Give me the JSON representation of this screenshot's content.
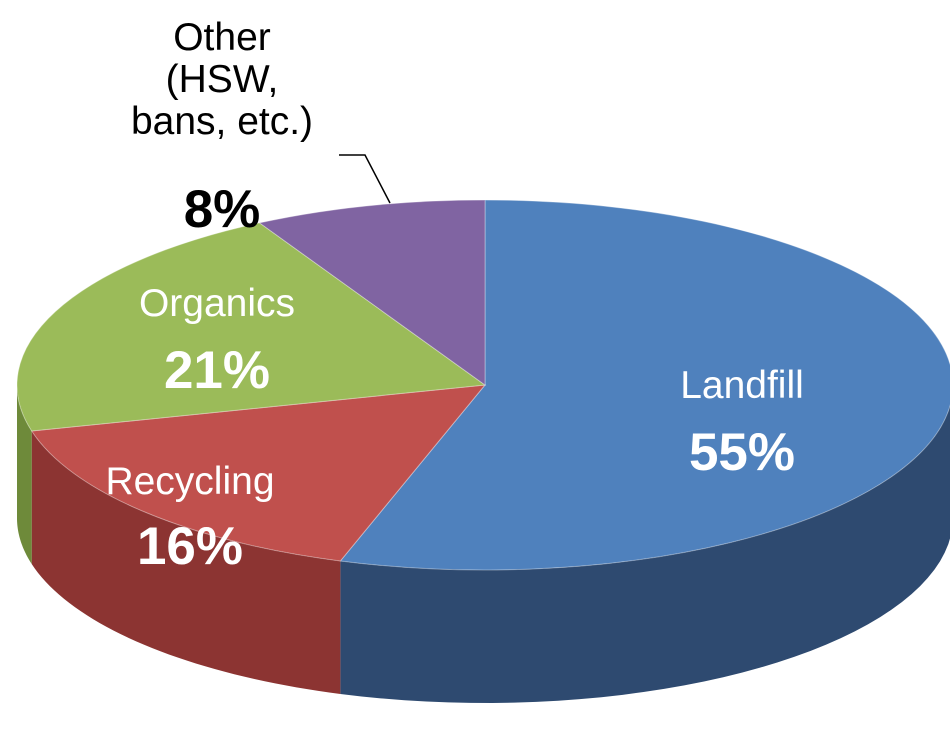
{
  "chart_data": {
    "type": "pie",
    "title": "",
    "slices": [
      {
        "label": "Landfill",
        "value": 55,
        "display": "55%",
        "color": "#4F81BD",
        "side_color": "#2E4A70",
        "text_color": "#FFFFFF"
      },
      {
        "label": "Recycling",
        "value": 16,
        "display": "16%",
        "color": "#C0504D",
        "side_color": "#8C3432",
        "text_color": "#FFFFFF"
      },
      {
        "label": "Organics",
        "value": 21,
        "display": "21%",
        "color": "#9BBB59",
        "side_color": "#6E8A3A",
        "text_color": "#FFFFFF"
      },
      {
        "label": "Other\n(HSW,\nbans, etc.)",
        "value": 8,
        "display": "8%",
        "color": "#8064A2",
        "side_color": "#5A4375",
        "text_color": "#000000"
      }
    ],
    "start_angle_deg": 90,
    "direction": "clockwise",
    "style": "3d-tilted",
    "legend": "none"
  }
}
